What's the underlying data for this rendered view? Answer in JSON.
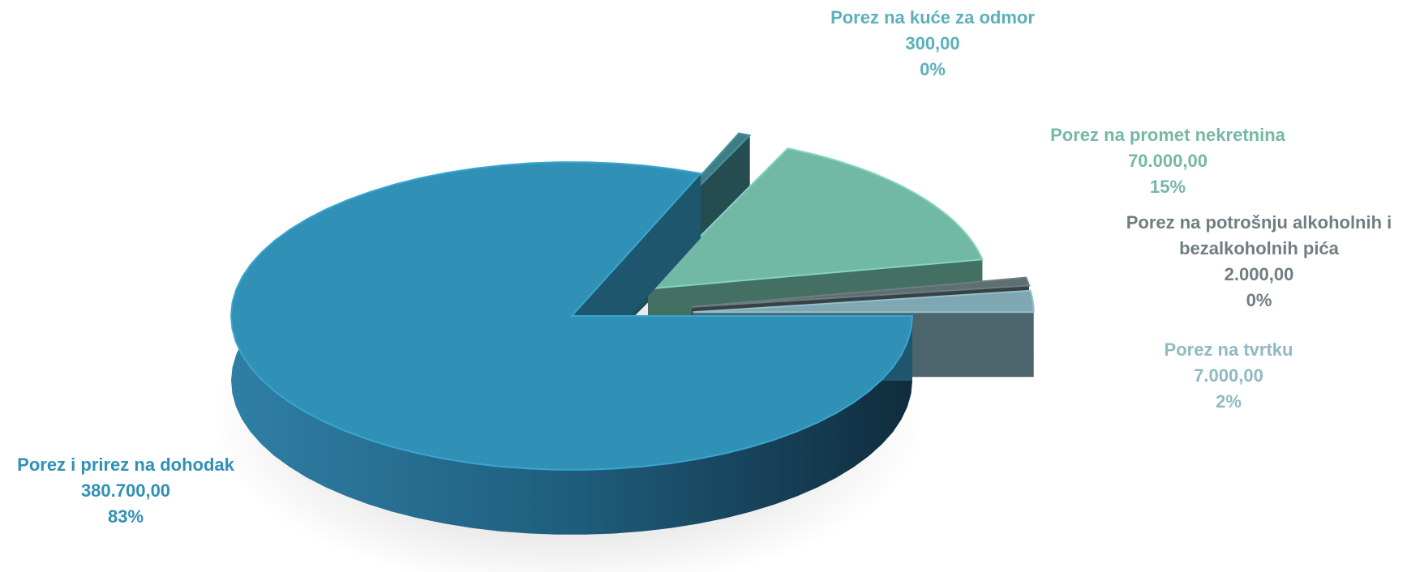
{
  "chart_data": {
    "type": "pie",
    "title": "",
    "slices": [
      {
        "label": "Porez i prirez na dohodak",
        "value": 380700,
        "value_text": "380.700,00",
        "percent_text": "83%",
        "color": "#3190b6"
      },
      {
        "label": "Porez na tvrtku",
        "value": 7000,
        "value_text": "7.000,00",
        "percent_text": "2%",
        "color": "#7ea7b2"
      },
      {
        "label": "Porez na potrošnju alkoholnih i bezalkoholnih pića",
        "label_lines": [
          "Porez na potrošnju alkoholnih i",
          "bezalkoholnih pića"
        ],
        "value": 2000,
        "value_text": "2.000,00",
        "percent_text": "0%",
        "color": "#5e6e72"
      },
      {
        "label": "Porez na promet nekretnina",
        "value": 70000,
        "value_text": "70.000,00",
        "percent_text": "15%",
        "color": "#72b9a5"
      },
      {
        "label": "Porez na kuće za odmor",
        "value": 300,
        "value_text": "300,00",
        "percent_text": "0%",
        "color": "#3e7f87"
      }
    ],
    "label_colors": [
      "#3190b6",
      "#8fb9c3",
      "#707d82",
      "#74b8a5",
      "#5bb0bb"
    ],
    "exploded": true,
    "three_d": true,
    "legend": "none"
  }
}
